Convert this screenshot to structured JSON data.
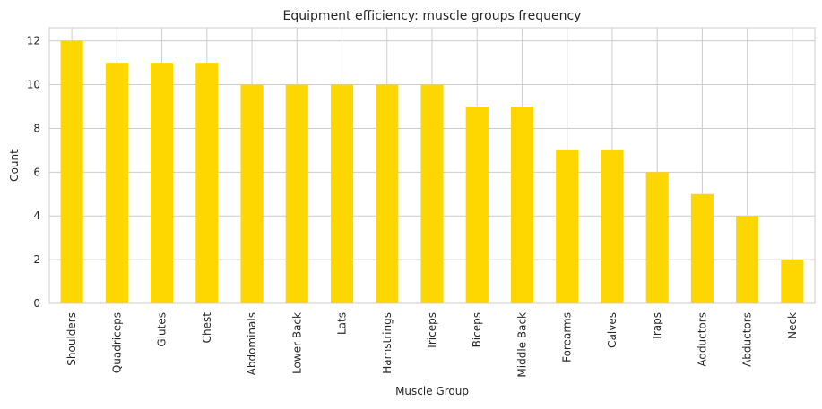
{
  "chart_data": {
    "type": "bar",
    "title": "Equipment efficiency: muscle groups frequency",
    "xlabel": "Muscle Group",
    "ylabel": "Count",
    "categories": [
      "Shoulders",
      "Quadriceps",
      "Glutes",
      "Chest",
      "Abdominals",
      "Lower Back",
      "Lats",
      "Hamstrings",
      "Triceps",
      "Biceps",
      "Middle Back",
      "Forearms",
      "Calves",
      "Traps",
      "Adductors",
      "Abductors",
      "Neck"
    ],
    "values": [
      12,
      11,
      11,
      11,
      10,
      10,
      10,
      10,
      10,
      9,
      9,
      7,
      7,
      6,
      5,
      4,
      2
    ],
    "ylim": [
      0,
      12.6
    ],
    "yticks": [
      0,
      2,
      4,
      6,
      8,
      10,
      12
    ],
    "grid": true,
    "legend": "none",
    "colors": {
      "bar": "#FFD700",
      "grid": "#cccccc",
      "frame": "#cccccc",
      "text": "#262626"
    }
  }
}
